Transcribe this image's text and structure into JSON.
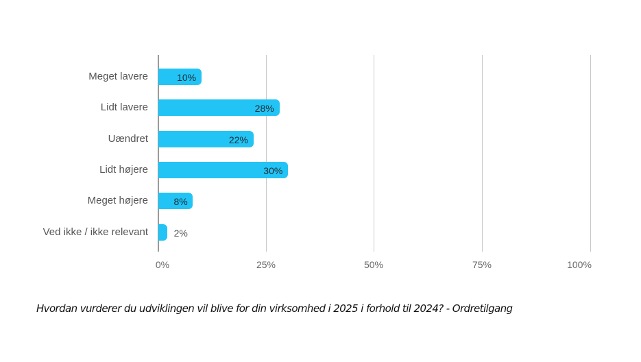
{
  "chart_data": {
    "type": "bar",
    "orientation": "horizontal",
    "title": "",
    "caption": "Hvordan vurderer du udviklingen vil blive for din virksomhed i 2025 i forhold til 2024? - Ordretilgang",
    "categories": [
      "Meget lavere",
      "Lidt lavere",
      "Uændret",
      "Lidt højere",
      "Meget højere",
      "Ved ikke / ikke relevant"
    ],
    "values": [
      10,
      28,
      22,
      30,
      8,
      2
    ],
    "value_labels": [
      "10%",
      "28%",
      "22%",
      "30%",
      "8%",
      "2%"
    ],
    "xlabel": "",
    "ylabel": "",
    "xlim": [
      0,
      100
    ],
    "x_ticks": [
      "0%",
      "25%",
      "50%",
      "75%",
      "100%"
    ],
    "grid": true,
    "legend": null,
    "colors": {
      "bar": "#22c4f5",
      "grid": "#c8c8c8",
      "axis": "#9a9a9a"
    }
  }
}
